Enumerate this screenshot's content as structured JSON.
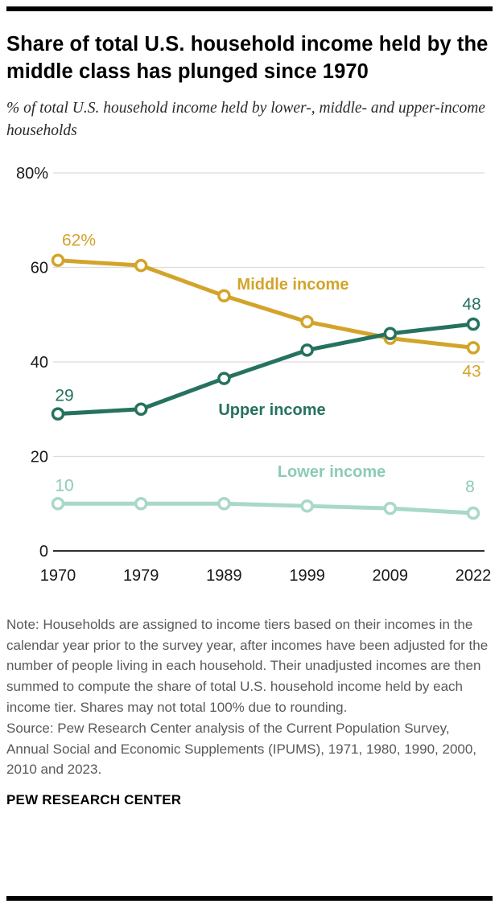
{
  "header": {
    "title": "Share of total U.S. household income held by the middle class has plunged since 1970",
    "subtitle": "% of total U.S. household income held by lower-, middle- and upper-income households"
  },
  "chart_data": {
    "type": "line",
    "x": [
      "1970",
      "1979",
      "1989",
      "1999",
      "2009",
      "2022"
    ],
    "ylim": [
      0,
      80
    ],
    "yticks": [
      0,
      20,
      40,
      60,
      80
    ],
    "ytick_labels": [
      "0",
      "20",
      "40",
      "60",
      "80%"
    ],
    "grid": true,
    "legend_position": "inline-labels",
    "series": [
      {
        "name": "Middle income",
        "color": "#d2a42a",
        "values": [
          61.5,
          60.4,
          54,
          48.5,
          45,
          43
        ],
        "start_label": "62%",
        "end_label": "43"
      },
      {
        "name": "Upper income",
        "color": "#25725f",
        "values": [
          29,
          30,
          36.5,
          42.5,
          46,
          48
        ],
        "start_label": "29",
        "end_label": "48"
      },
      {
        "name": "Lower income",
        "color": "#a9d8c8",
        "label_color": "#8ccbb8",
        "values": [
          10,
          10,
          10,
          9.5,
          9,
          8
        ],
        "start_label": "10",
        "end_label": "8"
      }
    ]
  },
  "footer": {
    "note": "Note: Households are assigned to income tiers based on their incomes in the calendar year prior to the survey year, after incomes have been adjusted for the number of people living in each household. Their unadjusted incomes are then summed to compute the share of total U.S. household income held by each income tier. Shares may not total 100% due to rounding.",
    "source": "Source: Pew Research Center analysis of the Current Population Survey, Annual Social and Economic Supplements (IPUMS), 1971, 1980, 1990, 2000, 2010 and 2023.",
    "brand": "PEW RESEARCH CENTER"
  }
}
